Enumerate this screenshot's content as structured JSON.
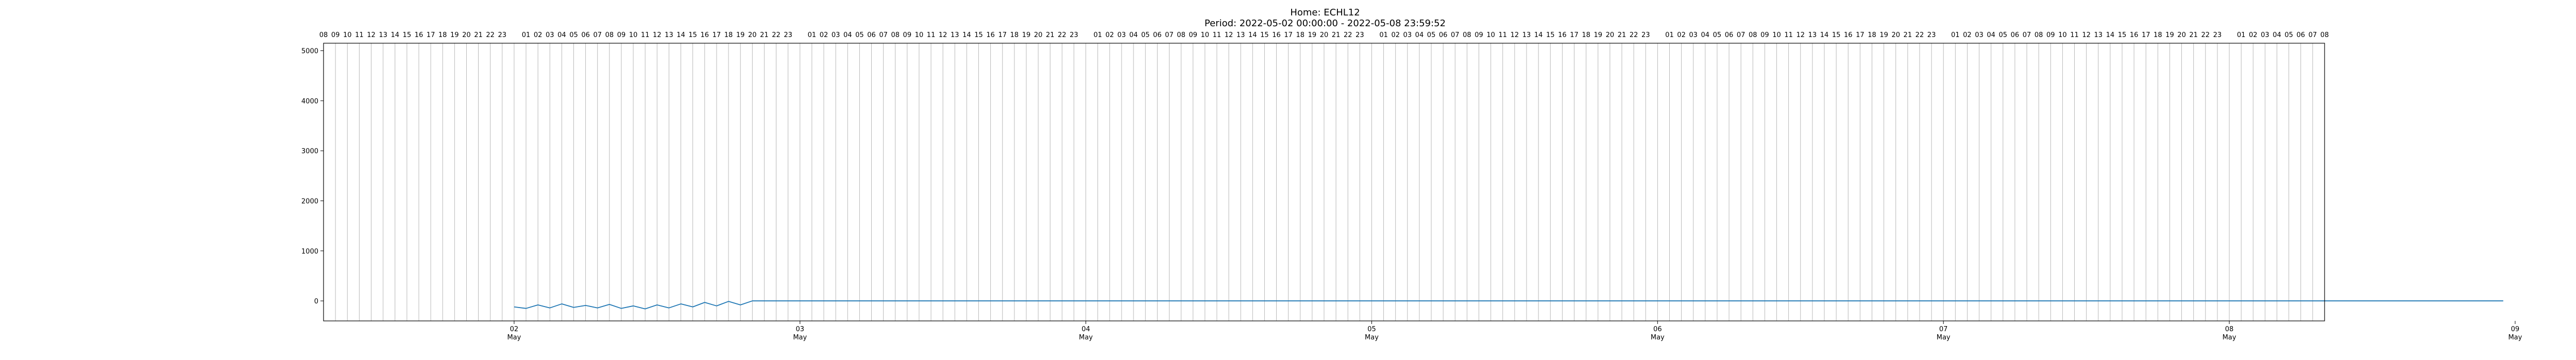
{
  "chart_data": {
    "type": "line",
    "title": "Home: ECHL12",
    "subtitle": "Period: 2022-05-02 00:00:00 - 2022-05-08 23:59:52",
    "xlabel": "",
    "ylabel": "",
    "ylim": [
      -400,
      5150
    ],
    "xlim_hours": [
      -16,
      152
    ],
    "grid": "vertical-hourly",
    "legend": "none",
    "line_color": "#1f77b4",
    "y_ticks": [
      0,
      1000,
      2000,
      3000,
      4000,
      5000
    ],
    "x_ticks": [
      {
        "day": "02",
        "month": "May"
      },
      {
        "day": "03",
        "month": "May"
      },
      {
        "day": "04",
        "month": "May"
      },
      {
        "day": "05",
        "month": "May"
      },
      {
        "day": "06",
        "month": "May"
      },
      {
        "day": "07",
        "month": "May"
      },
      {
        "day": "08",
        "month": "May"
      },
      {
        "day": "09",
        "month": "May"
      }
    ],
    "series": [
      {
        "values": [
          [
            0,
            -120
          ],
          [
            1,
            -150
          ],
          [
            2,
            -80
          ],
          [
            3,
            -140
          ],
          [
            4,
            -60
          ],
          [
            5,
            -130
          ],
          [
            6,
            -90
          ],
          [
            7,
            -140
          ],
          [
            8,
            -70
          ],
          [
            9,
            -150
          ],
          [
            10,
            -100
          ],
          [
            11,
            -160
          ],
          [
            12,
            -80
          ],
          [
            13,
            -140
          ],
          [
            14,
            -60
          ],
          [
            15,
            -120
          ],
          [
            16,
            -30
          ],
          [
            17,
            -100
          ],
          [
            18,
            -10
          ],
          [
            19,
            -80
          ],
          [
            20,
            0
          ],
          [
            21,
            0
          ],
          [
            22,
            0
          ],
          [
            23,
            0
          ],
          [
            24,
            0
          ],
          [
            25,
            0
          ],
          [
            26,
            0
          ],
          [
            27,
            0
          ],
          [
            28,
            0
          ],
          [
            29,
            0
          ],
          [
            30,
            0
          ],
          [
            31,
            0
          ],
          [
            32,
            0
          ],
          [
            33,
            0
          ],
          [
            34,
            0
          ],
          [
            35,
            0
          ],
          [
            36,
            0
          ],
          [
            37,
            0
          ],
          [
            38,
            0
          ],
          [
            39,
            0
          ],
          [
            40,
            0
          ],
          [
            41,
            0
          ],
          [
            42,
            0
          ],
          [
            43,
            0
          ],
          [
            44,
            0
          ],
          [
            45,
            0
          ],
          [
            46,
            0
          ],
          [
            47,
            0
          ],
          [
            48,
            0
          ],
          [
            49,
            0
          ],
          [
            50,
            0
          ],
          [
            51,
            0
          ],
          [
            52,
            0
          ],
          [
            53,
            0
          ],
          [
            54,
            0
          ],
          [
            55,
            0
          ],
          [
            56,
            0
          ],
          [
            57,
            0
          ],
          [
            58,
            0
          ],
          [
            59,
            0
          ],
          [
            60,
            0
          ],
          [
            61,
            0
          ],
          [
            62,
            0
          ],
          [
            63,
            0
          ],
          [
            64,
            0
          ],
          [
            65,
            0
          ],
          [
            66,
            0
          ],
          [
            67,
            0
          ],
          [
            68,
            0
          ],
          [
            69,
            0
          ],
          [
            70,
            0
          ],
          [
            71,
            0
          ],
          [
            72,
            0
          ],
          [
            73,
            0
          ],
          [
            74,
            0
          ],
          [
            75,
            0
          ],
          [
            76,
            0
          ],
          [
            77,
            0
          ],
          [
            78,
            0
          ],
          [
            79,
            0
          ],
          [
            80,
            0
          ],
          [
            81,
            0
          ],
          [
            82,
            0
          ],
          [
            83,
            0
          ],
          [
            84,
            0
          ],
          [
            85,
            0
          ],
          [
            86,
            0
          ],
          [
            87,
            0
          ],
          [
            88,
            0
          ],
          [
            89,
            0
          ],
          [
            90,
            0
          ],
          [
            91,
            0
          ],
          [
            92,
            0
          ],
          [
            93,
            0
          ],
          [
            94,
            0
          ],
          [
            95,
            0
          ],
          [
            96,
            0
          ],
          [
            97,
            0
          ],
          [
            98,
            0
          ],
          [
            99,
            0
          ],
          [
            100,
            0
          ],
          [
            101,
            0
          ],
          [
            102,
            0
          ],
          [
            103,
            0
          ],
          [
            104,
            0
          ],
          [
            105,
            0
          ],
          [
            106,
            0
          ],
          [
            107,
            0
          ],
          [
            108,
            0
          ],
          [
            109,
            0
          ],
          [
            110,
            0
          ],
          [
            111,
            0
          ],
          [
            112,
            0
          ],
          [
            113,
            0
          ],
          [
            114,
            0
          ],
          [
            115,
            0
          ],
          [
            116,
            0
          ],
          [
            117,
            0
          ],
          [
            118,
            0
          ],
          [
            119,
            0
          ],
          [
            120,
            0
          ],
          [
            121,
            0
          ],
          [
            122,
            0
          ],
          [
            123,
            0
          ],
          [
            124,
            0
          ],
          [
            125,
            0
          ],
          [
            126,
            0
          ],
          [
            127,
            0
          ],
          [
            128,
            0
          ],
          [
            129,
            0
          ],
          [
            130,
            0
          ],
          [
            131,
            0
          ],
          [
            132,
            0
          ],
          [
            133,
            0
          ],
          [
            134,
            0
          ],
          [
            135,
            0
          ],
          [
            136,
            0
          ],
          [
            137,
            0
          ],
          [
            138,
            0
          ],
          [
            139,
            0
          ],
          [
            140,
            0
          ],
          [
            141,
            0
          ],
          [
            142,
            0
          ],
          [
            143,
            0
          ],
          [
            144,
            0
          ],
          [
            145,
            0
          ],
          [
            146,
            0
          ],
          [
            147,
            0
          ],
          [
            148,
            0
          ],
          [
            149,
            0
          ],
          [
            150,
            0
          ],
          [
            151,
            0
          ],
          [
            152,
            0
          ],
          [
            153,
            0
          ],
          [
            154,
            0
          ],
          [
            155,
            0
          ],
          [
            156,
            0
          ],
          [
            157,
            0
          ],
          [
            158,
            0
          ],
          [
            159,
            0
          ],
          [
            160,
            0
          ],
          [
            161,
            0
          ],
          [
            162,
            0
          ],
          [
            163,
            0
          ],
          [
            164,
            0
          ],
          [
            165,
            0
          ],
          [
            166,
            0
          ],
          [
            167,
            0
          ]
        ]
      }
    ]
  }
}
